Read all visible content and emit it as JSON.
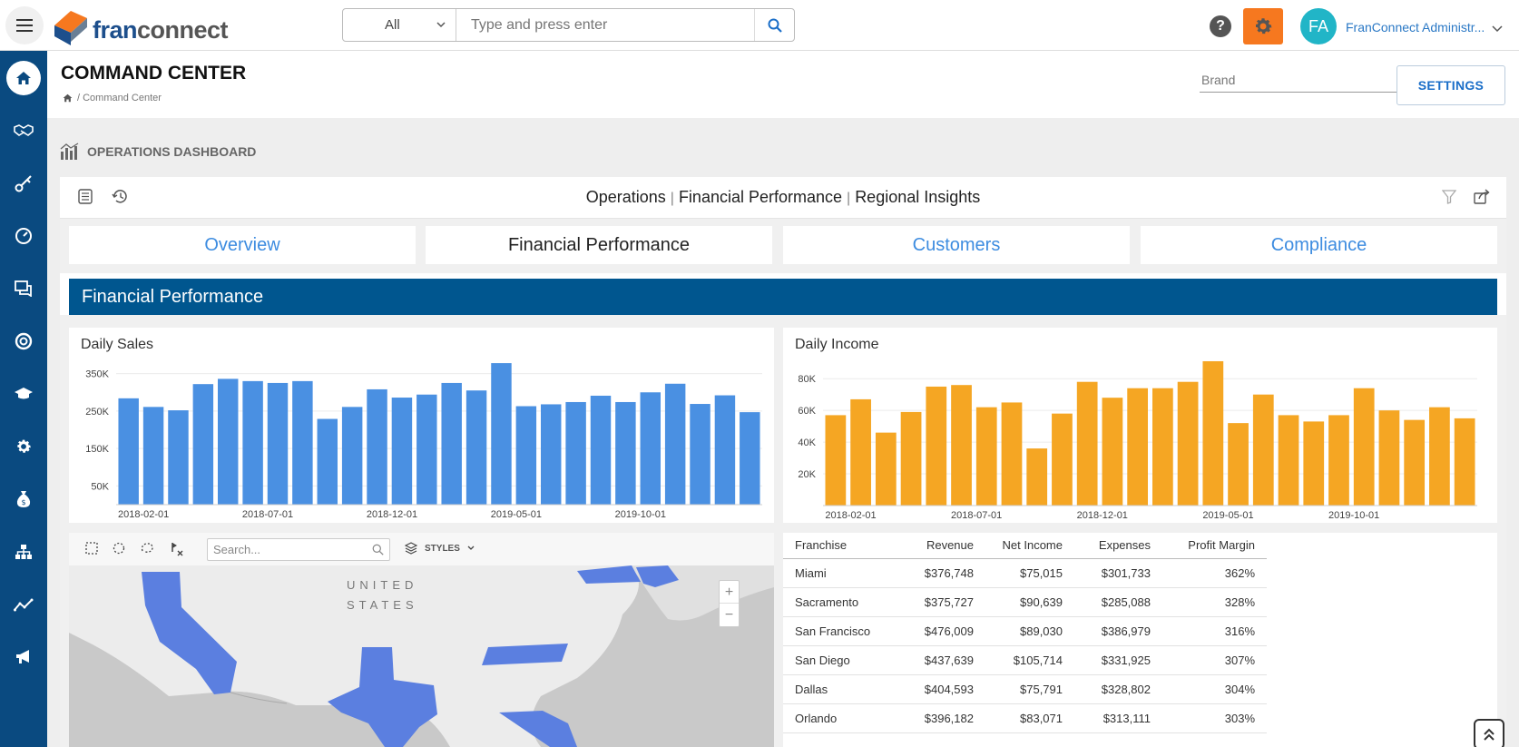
{
  "header": {
    "logo_text_a": "fran",
    "logo_text_b": "connect",
    "search_category": "All",
    "search_placeholder": "Type and press enter",
    "avatar_initials": "FA",
    "user_name": "FranConnect Administr..."
  },
  "page": {
    "title": "COMMAND CENTER",
    "breadcrumb": "/ Command Center",
    "brand_select": "Brand",
    "settings_label": "SETTINGS",
    "dashboard_label": "OPERATIONS DASHBOARD"
  },
  "toolbar": {
    "crumbs": [
      "Operations",
      "Financial Performance",
      "Regional Insights"
    ]
  },
  "tabs": [
    {
      "label": "Overview",
      "active": false
    },
    {
      "label": "Financial Performance",
      "active": true
    },
    {
      "label": "Customers",
      "active": false
    },
    {
      "label": "Compliance",
      "active": false
    }
  ],
  "section_title": "Financial Performance",
  "colors": {
    "nav": "#0a4a80",
    "section": "#00568f",
    "sales_bar": "#4a90e2",
    "income_bar": "#f5a623",
    "accent_orange": "#f6781f",
    "map_state": "#5b7fe0"
  },
  "chart_data": [
    {
      "type": "bar",
      "title": "Daily Sales",
      "x_ticks": [
        "2018-02-01",
        "2018-07-01",
        "2018-12-01",
        "2019-05-01",
        "2019-10-01"
      ],
      "y_ticks": [
        "50K",
        "150K",
        "250K",
        "350K"
      ],
      "ylim": [
        0,
        400000
      ],
      "values": [
        284000,
        261000,
        252000,
        322000,
        336000,
        330000,
        325000,
        330000,
        229000,
        261000,
        308000,
        286000,
        294000,
        325000,
        305000,
        378000,
        263000,
        268000,
        274000,
        291000,
        274000,
        300000,
        323000,
        269000,
        292000,
        247000
      ],
      "grid": true,
      "legend": "none"
    },
    {
      "type": "bar",
      "title": "Daily Income",
      "x_ticks": [
        "2018-02-01",
        "2018-07-01",
        "2018-12-01",
        "2019-05-01",
        "2019-10-01"
      ],
      "y_ticks": [
        "20K",
        "40K",
        "60K",
        "80K"
      ],
      "ylim": [
        0,
        95000
      ],
      "values": [
        57000,
        67000,
        46000,
        59000,
        75000,
        76000,
        62000,
        65000,
        36000,
        58000,
        78000,
        68000,
        74000,
        74000,
        78000,
        91000,
        52000,
        70000,
        57000,
        53000,
        57000,
        74000,
        60000,
        54000,
        62000,
        55000
      ],
      "grid": true,
      "legend": "none"
    }
  ],
  "map": {
    "search_placeholder": "Search...",
    "styles_label": "STYLES",
    "country_label_1": "UNITED",
    "country_label_2": "STATES",
    "zoom_in": "+",
    "zoom_out": "−"
  },
  "table": {
    "columns": [
      "Franchise",
      "Revenue",
      "Net Income",
      "Expenses",
      "Profit Margin"
    ],
    "rows": [
      [
        "Miami",
        "$376,748",
        "$75,015",
        "$301,733",
        "362%"
      ],
      [
        "Sacramento",
        "$375,727",
        "$90,639",
        "$285,088",
        "328%"
      ],
      [
        "San Francisco",
        "$476,009",
        "$89,030",
        "$386,979",
        "316%"
      ],
      [
        "San Diego",
        "$437,639",
        "$105,714",
        "$331,925",
        "307%"
      ],
      [
        "Dallas",
        "$404,593",
        "$75,791",
        "$328,802",
        "304%"
      ],
      [
        "Orlando",
        "$396,182",
        "$83,071",
        "$313,111",
        "303%"
      ]
    ]
  }
}
